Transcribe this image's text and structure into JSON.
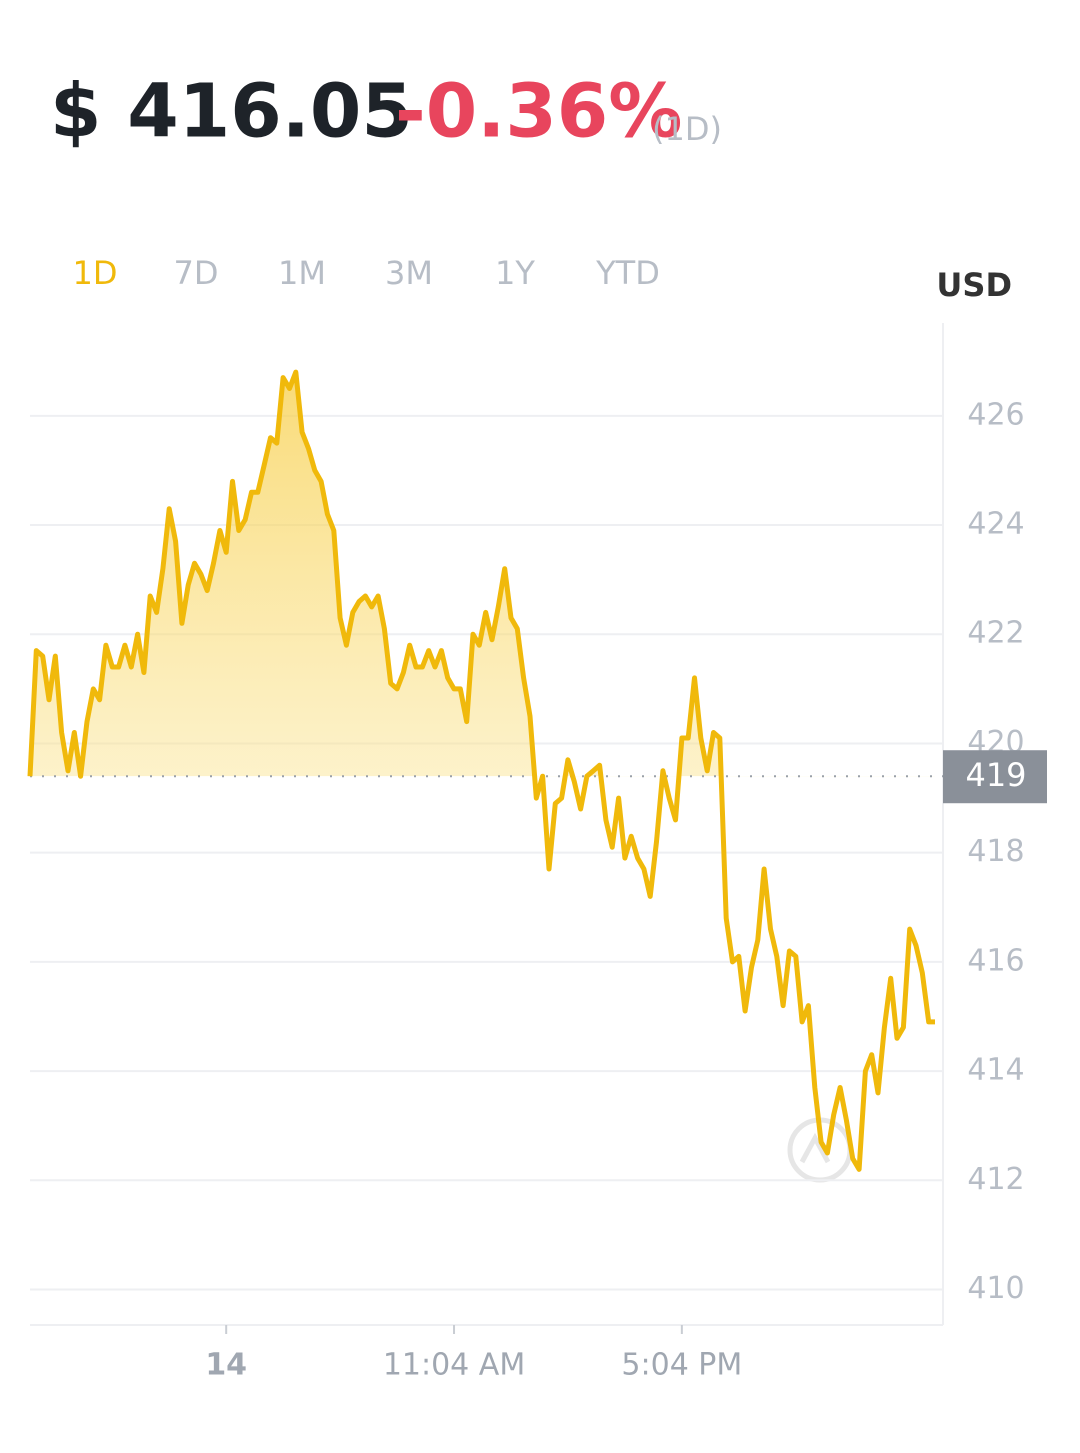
{
  "header": {
    "price": "$ 416.05",
    "change": "-0.36%",
    "period": "(1D)"
  },
  "tabs": [
    "1D",
    "7D",
    "1M",
    "3M",
    "1Y",
    "YTD"
  ],
  "active_tab": 0,
  "currency": "USD",
  "chart_data": {
    "type": "line",
    "color": "#f0b90b",
    "categories": [
      null,
      null,
      null,
      null,
      null,
      null,
      null,
      null,
      null,
      null,
      null,
      null,
      null,
      null,
      null,
      null,
      null,
      null,
      null,
      null,
      null,
      null,
      null,
      null,
      null,
      null,
      null,
      null,
      null,
      null,
      null,
      "14",
      null,
      null,
      null,
      null,
      null,
      null,
      null,
      null,
      null,
      null,
      null,
      null,
      null,
      null,
      null,
      null,
      null,
      null,
      null,
      null,
      null,
      null,
      null,
      null,
      null,
      null,
      null,
      null,
      null,
      null,
      null,
      null,
      null,
      null,
      null,
      "11:04 AM",
      null,
      null,
      null,
      null,
      null,
      null,
      null,
      null,
      null,
      null,
      null,
      null,
      null,
      null,
      null,
      null,
      null,
      null,
      null,
      null,
      null,
      null,
      null,
      null,
      null,
      null,
      null,
      null,
      null,
      null,
      null,
      null,
      null,
      null,
      null,
      "5:04 PM",
      null,
      null,
      null,
      null,
      null,
      null,
      null,
      null,
      null,
      null,
      null,
      null,
      null,
      null,
      null,
      null,
      null,
      null,
      null,
      null,
      null,
      null,
      null,
      null,
      null,
      null,
      null,
      null,
      null,
      null,
      null,
      null,
      null,
      null,
      null,
      null,
      null,
      null,
      null,
      null
    ],
    "values": [
      419.4,
      421.7,
      421.6,
      420.8,
      421.6,
      420.2,
      419.5,
      420.2,
      419.4,
      420.4,
      421.0,
      420.8,
      421.8,
      421.4,
      421.4,
      421.8,
      421.4,
      422.0,
      421.3,
      422.7,
      422.4,
      423.2,
      424.3,
      423.7,
      422.2,
      422.9,
      423.3,
      423.1,
      422.8,
      423.3,
      423.9,
      423.5,
      424.8,
      423.9,
      424.1,
      424.6,
      424.6,
      425.1,
      425.6,
      425.5,
      426.7,
      426.5,
      426.8,
      425.7,
      425.4,
      425.0,
      424.8,
      424.2,
      423.9,
      422.3,
      421.8,
      422.4,
      422.6,
      422.7,
      422.5,
      422.7,
      422.1,
      421.1,
      421.0,
      421.3,
      421.8,
      421.4,
      421.4,
      421.7,
      421.4,
      421.7,
      421.2,
      421.0,
      421.0,
      420.4,
      422.0,
      421.8,
      422.4,
      421.9,
      422.5,
      423.2,
      422.3,
      422.1,
      421.2,
      420.5,
      419.0,
      419.4,
      417.7,
      418.9,
      419.0,
      419.7,
      419.3,
      418.8,
      419.4,
      419.5,
      419.6,
      418.6,
      418.1,
      419.0,
      417.9,
      418.3,
      417.9,
      417.7,
      417.2,
      418.2,
      419.5,
      419.0,
      418.6,
      420.1,
      420.1,
      421.2,
      420.1,
      419.5,
      420.2,
      420.1,
      416.8,
      416.0,
      416.1,
      415.1,
      415.9,
      416.4,
      417.7,
      416.6,
      416.1,
      415.2,
      416.2,
      416.1,
      414.9,
      415.2,
      413.7,
      412.7,
      412.5,
      413.2,
      413.7,
      413.1,
      412.4,
      412.2,
      414.0,
      414.3,
      413.6,
      414.8,
      415.7,
      414.6,
      414.8,
      416.6,
      416.3,
      415.8,
      414.9,
      414.9
    ],
    "ylim": [
      409.35,
      427.7
    ],
    "yticks": [
      410,
      412,
      414,
      416,
      418,
      420,
      422,
      424,
      426
    ],
    "grid": true,
    "reference_line": {
      "value": 419.4,
      "label": "419"
    }
  }
}
